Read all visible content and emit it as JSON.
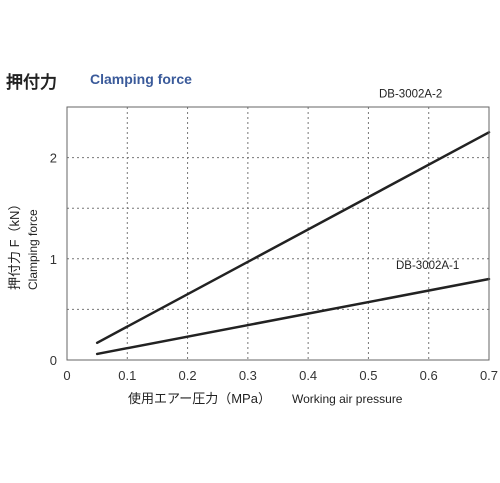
{
  "header": {
    "title_jp": "押付力",
    "title_en": "Clamping force"
  },
  "chart_data": {
    "type": "line",
    "xlim": [
      0,
      0.7
    ],
    "ylim": [
      0,
      2.5
    ],
    "x_ticks": [
      "0",
      "0.1",
      "0.2",
      "0.3",
      "0.4",
      "0.5",
      "0.6",
      "0.7"
    ],
    "y_ticks": [
      "0",
      "1",
      "2"
    ],
    "xlabel_jp": "使用エアー圧力（MPa）",
    "xlabel_en": "Working air pressure",
    "ylabel_jp": "押付力 F（kN）",
    "ylabel_en": "Clamping force",
    "grid": true,
    "series": [
      {
        "name": "DB-3002A-2",
        "x": [
          0.05,
          0.7
        ],
        "y": [
          0.17,
          2.25
        ],
        "color": "#222222"
      },
      {
        "name": "DB-3002A-1",
        "x": [
          0.05,
          0.7
        ],
        "y": [
          0.06,
          0.8
        ],
        "color": "#222222"
      }
    ]
  }
}
